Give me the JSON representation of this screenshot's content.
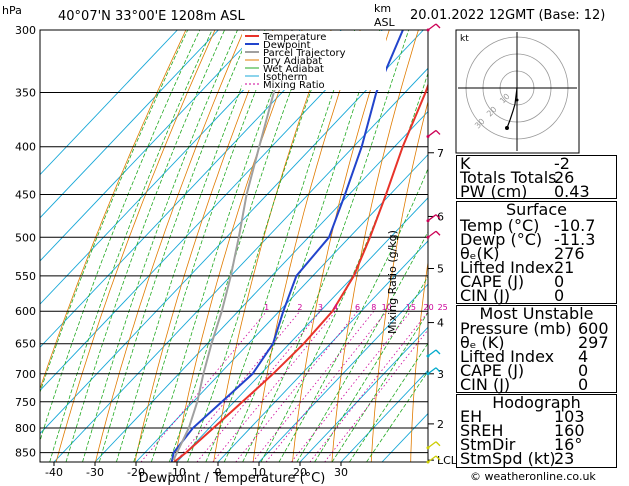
{
  "header": {
    "hpa_label": "hPa",
    "location": "40°07'N 33°00'E 1208m ASL",
    "km_label": "km",
    "asl_label": "ASL",
    "datetime": "20.01.2022 12GMT (Base: 12)"
  },
  "legend": [
    "Temperature",
    "Dewpoint",
    "Parcel Trajectory",
    "Dry Adiabat",
    "Wet Adiabat",
    "Isotherm",
    "Mixing Ratio"
  ],
  "footer": {
    "copyright": "© weatheronline.co.uk"
  },
  "chart_data": {
    "type": "line",
    "title": "",
    "xlabel": "Dewpoint / Temperature (°C)",
    "ylabel": "hPa",
    "right_label": "Mixing Ratio (g/kg)",
    "x_ticks": [
      -40,
      -30,
      -20,
      -10,
      0,
      10,
      20,
      30
    ],
    "pressure_levels": [
      300,
      350,
      400,
      450,
      500,
      550,
      600,
      650,
      700,
      750,
      800,
      850
    ],
    "km_ticks": [
      {
        "km": "7",
        "p": 406
      },
      {
        "km": "6",
        "p": 475
      },
      {
        "km": "5",
        "p": 540
      },
      {
        "km": "4",
        "p": 617
      },
      {
        "km": "3",
        "p": 700
      },
      {
        "km": "2",
        "p": 792
      },
      {
        "km": "LCL",
        "p": 866
      }
    ],
    "mixing_ratio_labels": [
      "1",
      "2",
      "3",
      "4",
      "6",
      "8",
      "10",
      "15",
      "20",
      "25"
    ],
    "mixing_ratio_values": [
      1,
      2,
      3,
      4,
      6,
      8,
      10,
      15,
      20,
      25
    ],
    "series": [
      {
        "name": "Temperature",
        "color": "#e8332a",
        "points": [
          [
            -10.7,
            870
          ],
          [
            -10,
            850
          ],
          [
            -9,
            800
          ],
          [
            -8,
            750
          ],
          [
            -7,
            700
          ],
          [
            -6.5,
            650
          ],
          [
            -7,
            600
          ],
          [
            -10,
            550
          ],
          [
            -15,
            500
          ],
          [
            -21,
            450
          ],
          [
            -28,
            400
          ],
          [
            -35,
            350
          ],
          [
            -44,
            300
          ]
        ]
      },
      {
        "name": "Dewpoint",
        "color": "#2244cc",
        "points": [
          [
            -11.3,
            870
          ],
          [
            -13,
            850
          ],
          [
            -14,
            800
          ],
          [
            -13,
            750
          ],
          [
            -12,
            700
          ],
          [
            -14,
            650
          ],
          [
            -19,
            600
          ],
          [
            -24,
            550
          ],
          [
            -25,
            500
          ],
          [
            -31,
            450
          ],
          [
            -38,
            400
          ],
          [
            -47,
            350
          ],
          [
            -55,
            300
          ]
        ]
      },
      {
        "name": "Parcel Trajectory",
        "color": "#a0a0a0",
        "points": [
          [
            -11.3,
            866
          ],
          [
            -15,
            800
          ],
          [
            -19,
            750
          ],
          [
            -24,
            700
          ],
          [
            -29,
            650
          ],
          [
            -34,
            600
          ],
          [
            -40,
            550
          ],
          [
            -47,
            500
          ],
          [
            -55,
            450
          ],
          [
            -63,
            400
          ],
          [
            -72,
            350
          ],
          [
            -82,
            300
          ]
        ]
      }
    ]
  },
  "indices": {
    "k_label": "K",
    "k_value": "-2",
    "tt_label": "Totals Totals",
    "tt_value": "26",
    "pw_label": "PW (cm)",
    "pw_value": "0.43"
  },
  "surface": {
    "title": "Surface",
    "rows": [
      {
        "label": "Temp (°C)",
        "value": "-10.7"
      },
      {
        "label": "Dewp (°C)",
        "value": "-11.3"
      },
      {
        "label": "θₑ(K)",
        "value": "276"
      },
      {
        "label": "Lifted Index",
        "value": "21"
      },
      {
        "label": "CAPE (J)",
        "value": "0"
      },
      {
        "label": "CIN (J)",
        "value": "0"
      }
    ]
  },
  "most_unstable": {
    "title": "Most Unstable",
    "rows": [
      {
        "label": "Pressure (mb)",
        "value": "600"
      },
      {
        "label": "θₑ (K)",
        "value": "297"
      },
      {
        "label": "Lifted Index",
        "value": "4"
      },
      {
        "label": "CAPE (J)",
        "value": "0"
      },
      {
        "label": "CIN (J)",
        "value": "0"
      }
    ]
  },
  "hodograph": {
    "title": "Hodograph",
    "kt_label": "kt",
    "ring_labels": [
      "10",
      "20",
      "30"
    ],
    "rows": [
      {
        "label": "EH",
        "value": "103"
      },
      {
        "label": "SREH",
        "value": "160"
      },
      {
        "label": "StmDir",
        "value": "16°"
      },
      {
        "label": "StmSpd (kt)",
        "value": "23"
      }
    ]
  }
}
